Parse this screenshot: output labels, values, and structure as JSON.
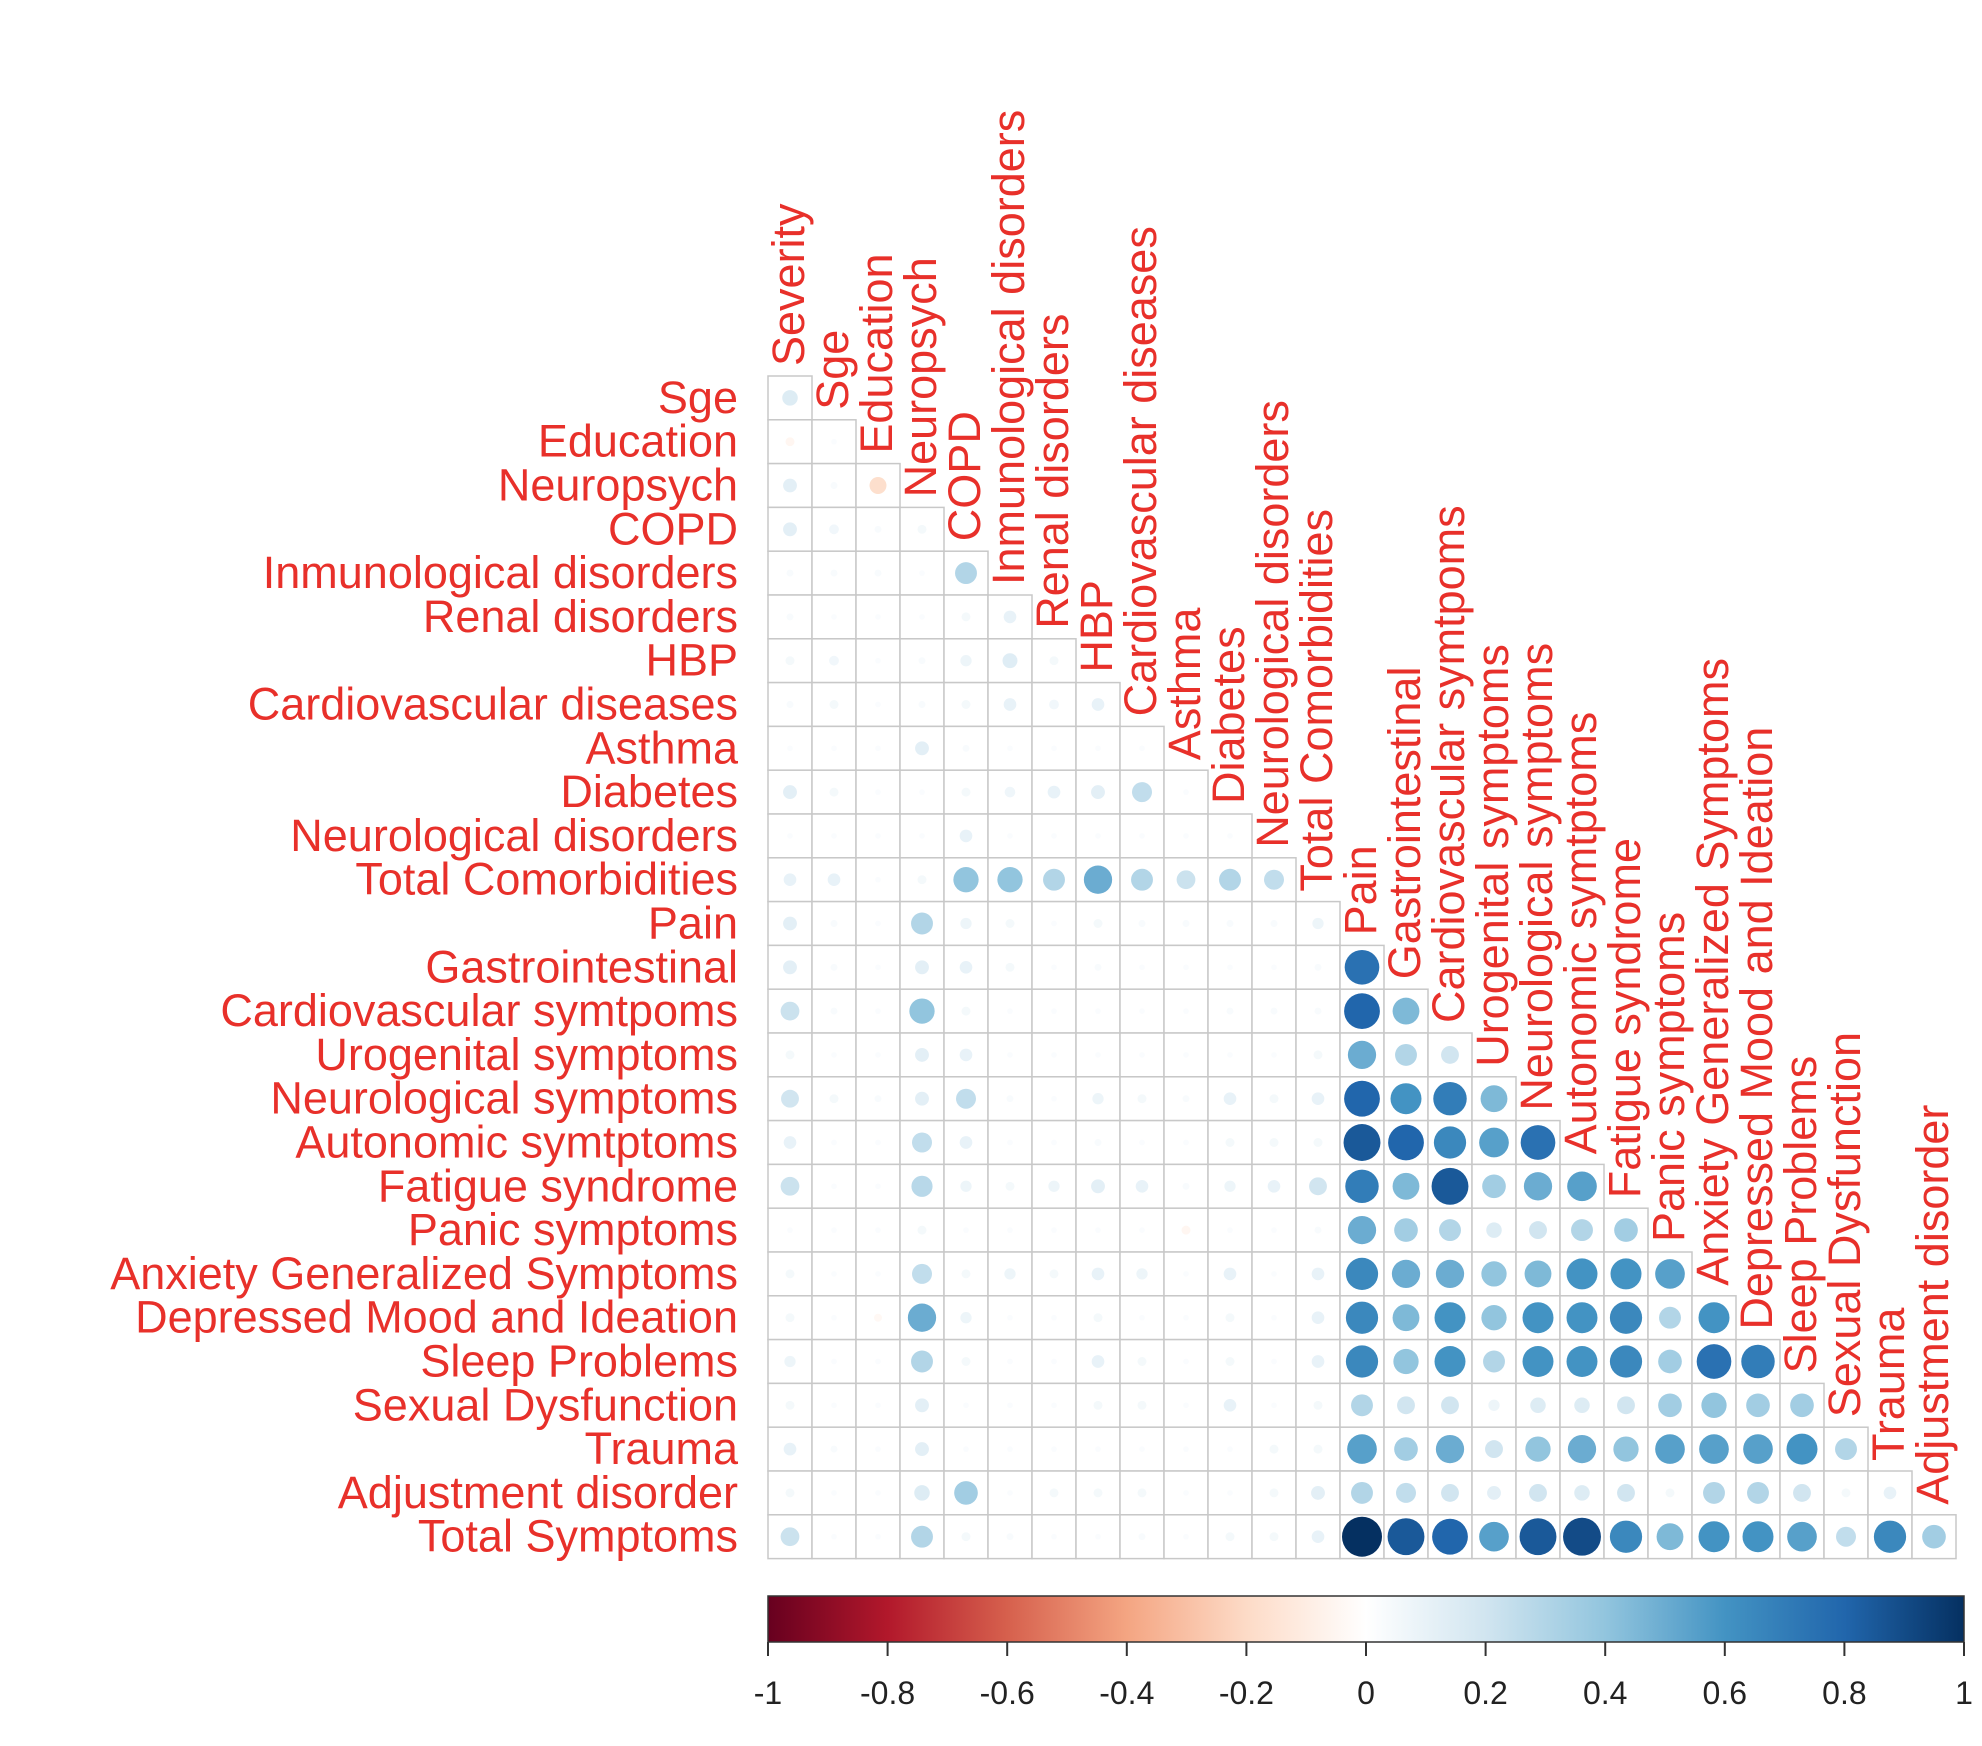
{
  "chart_data": {
    "type": "heatmap",
    "style": "lower-triangle correlogram, circles sized and colored by correlation",
    "row_labels": [
      "Sge",
      "Education",
      "Neuropsych",
      "COPD",
      "Inmunological disorders",
      "Renal disorders",
      "HBP",
      "Cardiovascular diseases",
      "Asthma",
      "Diabetes",
      "Neurological disorders",
      "Total Comorbidities",
      "Pain",
      "Gastrointestinal",
      "Cardiovascular symtpoms",
      "Urogenital symptoms",
      "Neurological symptoms",
      "Autonomic symtptoms",
      "Fatigue syndrome",
      "Panic symptoms",
      "Anxiety Generalized Symptoms",
      "Depressed Mood and Ideation",
      "Sleep Problems",
      "Sexual Dysfunction",
      "Trauma",
      "Adjustment disorder",
      "Total Symptoms"
    ],
    "column_labels": [
      "Severity",
      "Sge",
      "Education",
      "Neuropsych",
      "COPD",
      "Inmunological disorders",
      "Renal disorders",
      "HBP",
      "Cardiovascular diseases",
      "Asthma",
      "Diabetes",
      "Neurological disorders",
      "Total Comorbidities",
      "Pain",
      "Gastrointestinal",
      "Cardiovascular symtpoms",
      "Urogenital symptoms",
      "Neurological symptoms",
      "Autonomic symtptoms",
      "Fatigue syndrome",
      "Panic symptoms",
      "Anxiety Generalized Symptoms",
      "Depressed Mood and Ideation",
      "Sleep Problems",
      "Sexual Dysfunction",
      "Trauma",
      "Adjustment disorder"
    ],
    "matrix": [
      [
        0.15
      ],
      [
        -0.05,
        0.02
      ],
      [
        0.12,
        0.03,
        -0.18
      ],
      [
        0.12,
        0.06,
        0.03,
        0.05
      ],
      [
        0.03,
        0.03,
        0.03,
        0.02,
        0.3
      ],
      [
        0.03,
        0.02,
        0.02,
        0.02,
        0.05,
        0.1
      ],
      [
        0.05,
        0.06,
        0.02,
        0.03,
        0.08,
        0.14,
        0.05
      ],
      [
        0.03,
        0.05,
        0.02,
        0.03,
        0.05,
        0.1,
        0.06,
        0.1
      ],
      [
        0.02,
        0.02,
        0.02,
        0.12,
        0.03,
        0.02,
        0.02,
        0.02,
        0.02
      ],
      [
        0.12,
        0.05,
        0.02,
        0.02,
        0.05,
        0.07,
        0.1,
        0.12,
        0.25,
        0.02
      ],
      [
        0.02,
        0.02,
        0.02,
        0.02,
        0.1,
        0.02,
        0.02,
        0.02,
        0.02,
        0.02,
        0.02
      ],
      [
        0.1,
        0.1,
        0.02,
        0.05,
        0.4,
        0.4,
        0.3,
        0.5,
        0.3,
        0.22,
        0.3,
        0.25
      ],
      [
        0.12,
        0.03,
        0.02,
        0.3,
        0.08,
        0.05,
        0.02,
        0.05,
        0.03,
        0.03,
        0.03,
        0.03,
        0.08
      ],
      [
        0.12,
        0.03,
        0.02,
        0.12,
        0.1,
        0.05,
        0.02,
        0.03,
        0.02,
        0.02,
        0.02,
        0.02,
        0.03,
        0.75
      ],
      [
        0.22,
        0.03,
        0.02,
        0.4,
        0.05,
        0.02,
        0.02,
        0.02,
        0.02,
        0.02,
        0.03,
        0.03,
        0.03,
        0.8,
        0.45
      ],
      [
        0.05,
        0.02,
        0.02,
        0.12,
        0.1,
        0.02,
        0.02,
        0.02,
        0.02,
        0.02,
        0.02,
        0.02,
        0.05,
        0.5,
        0.3,
        0.2
      ],
      [
        0.2,
        0.05,
        0.03,
        0.12,
        0.25,
        0.03,
        0.02,
        0.08,
        0.05,
        0.03,
        0.1,
        0.05,
        0.1,
        0.8,
        0.6,
        0.7,
        0.45
      ],
      [
        0.1,
        0.02,
        0.02,
        0.25,
        0.1,
        0.02,
        0.02,
        0.03,
        0.02,
        0.02,
        0.05,
        0.05,
        0.05,
        0.85,
        0.8,
        0.65,
        0.55,
        0.75
      ],
      [
        0.22,
        0.02,
        0.02,
        0.28,
        0.08,
        0.05,
        0.08,
        0.12,
        0.1,
        0.03,
        0.08,
        0.1,
        0.2,
        0.7,
        0.45,
        0.85,
        0.35,
        0.5,
        0.55
      ],
      [
        0.02,
        0.02,
        0.02,
        0.05,
        0.02,
        0.02,
        0.02,
        0.02,
        0.02,
        -0.05,
        0.02,
        0.02,
        0.03,
        0.5,
        0.35,
        0.3,
        0.15,
        0.2,
        0.3,
        0.35
      ],
      [
        0.05,
        0.02,
        0.02,
        0.25,
        0.05,
        0.08,
        0.05,
        0.1,
        0.08,
        0.02,
        0.1,
        0.02,
        0.1,
        0.65,
        0.5,
        0.5,
        0.4,
        0.45,
        0.6,
        0.6,
        0.55
      ],
      [
        0.05,
        0.02,
        -0.04,
        0.5,
        0.08,
        0.02,
        0.02,
        0.05,
        0.02,
        0.02,
        0.05,
        0.02,
        0.1,
        0.65,
        0.45,
        0.6,
        0.4,
        0.6,
        0.6,
        0.65,
        0.3,
        0.6
      ],
      [
        0.08,
        0.02,
        0.02,
        0.3,
        0.05,
        0.02,
        0.02,
        0.1,
        0.05,
        0.02,
        0.05,
        0.02,
        0.1,
        0.65,
        0.4,
        0.6,
        0.3,
        0.6,
        0.6,
        0.65,
        0.35,
        0.75,
        0.7
      ],
      [
        0.05,
        0.02,
        0.02,
        0.12,
        0.02,
        0.02,
        0.02,
        0.05,
        0.05,
        0.02,
        0.1,
        0.02,
        0.05,
        0.3,
        0.2,
        0.2,
        0.08,
        0.15,
        0.15,
        0.2,
        0.35,
        0.4,
        0.35,
        0.35
      ],
      [
        0.1,
        0.03,
        0.02,
        0.12,
        0.02,
        0.02,
        0.02,
        0.02,
        0.02,
        0.02,
        0.02,
        0.05,
        0.05,
        0.55,
        0.35,
        0.5,
        0.2,
        0.4,
        0.5,
        0.4,
        0.55,
        0.55,
        0.55,
        0.6,
        0.3
      ],
      [
        0.05,
        0.02,
        0.02,
        0.15,
        0.35,
        0.02,
        0.05,
        0.05,
        0.05,
        0.02,
        0.02,
        0.05,
        0.12,
        0.3,
        0.25,
        0.2,
        0.12,
        0.2,
        0.15,
        0.2,
        0.05,
        0.3,
        0.3,
        0.2,
        0.05,
        0.1
      ],
      [
        0.22,
        0.02,
        0.02,
        0.3,
        0.05,
        0.03,
        0.02,
        0.02,
        0.03,
        0.02,
        0.05,
        0.05,
        0.1,
        1.0,
        0.85,
        0.8,
        0.55,
        0.85,
        0.9,
        0.65,
        0.45,
        0.6,
        0.6,
        0.55,
        0.25,
        0.65,
        0.35
      ]
    ],
    "colorbar": {
      "range": [
        -1,
        1
      ],
      "ticks": [
        "-1",
        "-0.8",
        "-0.6",
        "-0.4",
        "-0.2",
        "0",
        "0.2",
        "0.4",
        "0.6",
        "0.8",
        "1"
      ],
      "colors": {
        "-1": "#67001f",
        "-0.8": "#b2182b",
        "-0.6": "#d6604d",
        "-0.4": "#f4a582",
        "-0.2": "#fddbc7",
        "0": "#ffffff",
        "0.2": "#d1e5f0",
        "0.4": "#92c5de",
        "0.6": "#4393c3",
        "0.8": "#2166ac",
        "1": "#053061"
      }
    },
    "grid": true,
    "label_color": "#e8302a"
  }
}
